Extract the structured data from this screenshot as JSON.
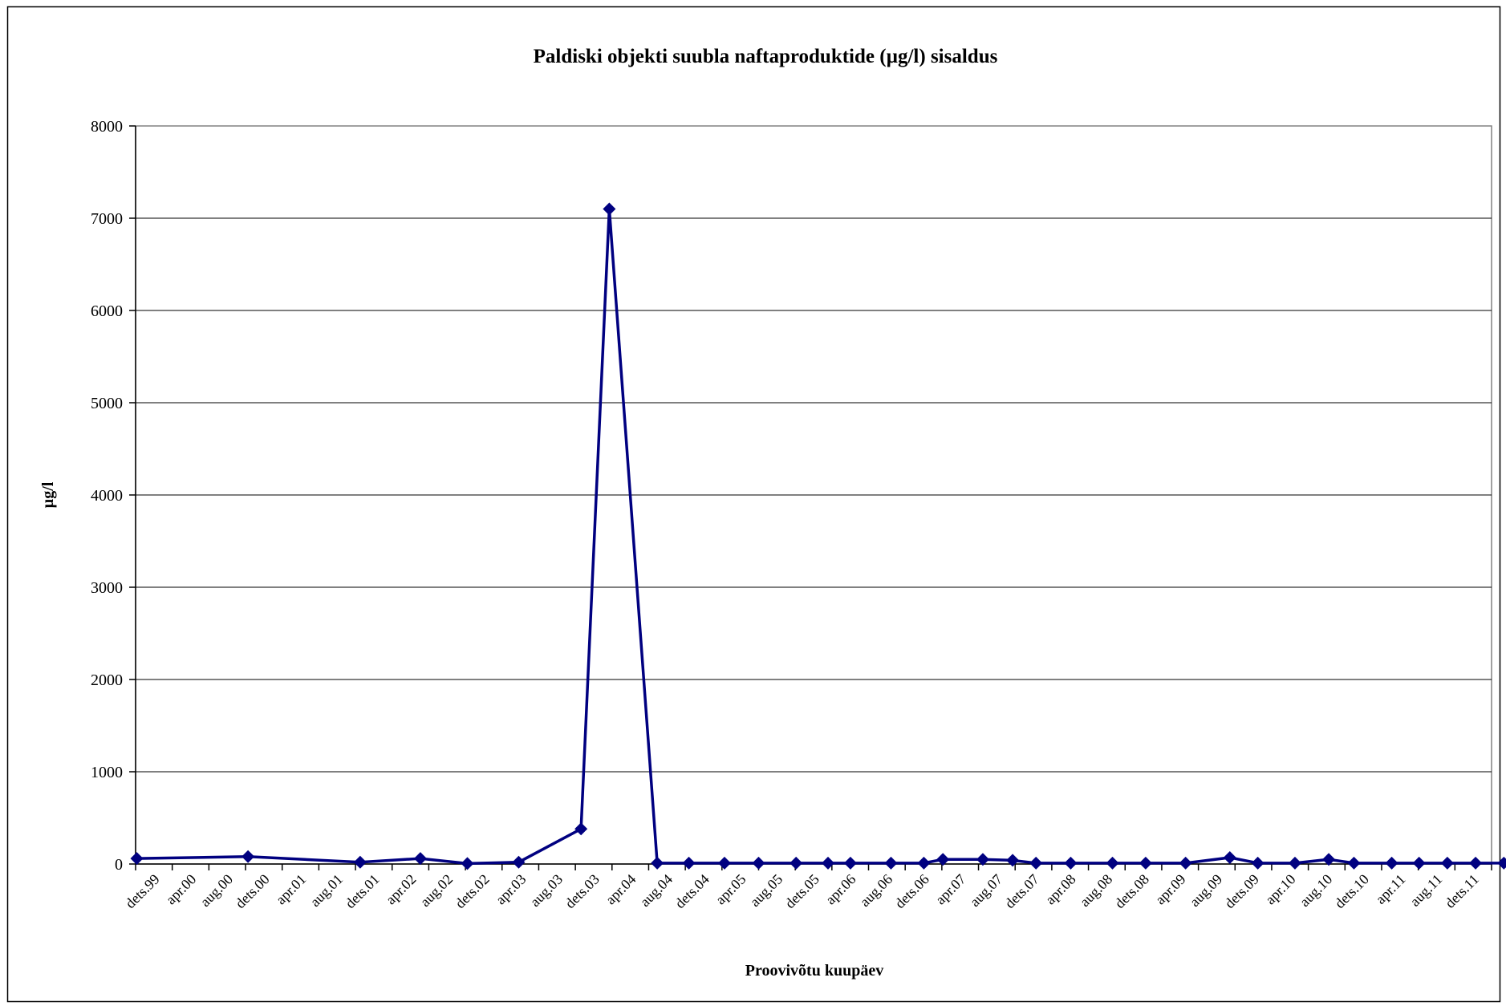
{
  "chart_data": {
    "type": "line",
    "title": "Paldiski objekti suubla naftaproduktide (µg/l) sisaldus",
    "xlabel": "Proovivõtu kuupäev",
    "ylabel": "µg/l",
    "ylim": [
      0,
      8000
    ],
    "yticks": [
      "0",
      "1000",
      "2000",
      "3000",
      "4000",
      "5000",
      "6000",
      "7000",
      "8000"
    ],
    "grid": "horizontal",
    "legend": "none",
    "x_range": [
      "1999-12",
      "2012-01"
    ],
    "categories": [
      "dets.99",
      "apr.00",
      "aug.00",
      "dets.00",
      "apr.01",
      "aug.01",
      "dets.01",
      "apr.02",
      "aug.02",
      "dets.02",
      "apr.03",
      "aug.03",
      "dets.03",
      "apr.04",
      "aug.04",
      "dets.04",
      "apr.05",
      "aug.05",
      "dets.05",
      "apr.06",
      "aug.06",
      "dets.06",
      "apr.07",
      "aug.07",
      "dets.07",
      "apr.08",
      "aug.08",
      "dets.08",
      "apr.09",
      "aug.09",
      "dets.09",
      "apr.10",
      "aug.10",
      "dets.10",
      "apr.11",
      "aug.11",
      "dets.11"
    ],
    "series": [
      {
        "color": "#000080",
        "marker": "diamond",
        "points": [
          {
            "x": "1999-12-05",
            "y": 60
          },
          {
            "x": "2000-12-01",
            "y": 80
          },
          {
            "x": "2001-12-01",
            "y": 20
          },
          {
            "x": "2002-06-15",
            "y": 60
          },
          {
            "x": "2002-11-15",
            "y": 5
          },
          {
            "x": "2003-05-01",
            "y": 20
          },
          {
            "x": "2003-11-20",
            "y": 380
          },
          {
            "x": "2004-02-20",
            "y": 7100
          },
          {
            "x": "2004-07-25",
            "y": 10
          },
          {
            "x": "2004-11-05",
            "y": 10
          },
          {
            "x": "2005-03-01",
            "y": 10
          },
          {
            "x": "2005-06-20",
            "y": 10
          },
          {
            "x": "2005-10-20",
            "y": 10
          },
          {
            "x": "2006-02-01",
            "y": 10
          },
          {
            "x": "2006-04-15",
            "y": 10
          },
          {
            "x": "2006-08-25",
            "y": 10
          },
          {
            "x": "2006-12-10",
            "y": 10
          },
          {
            "x": "2007-02-10",
            "y": 50
          },
          {
            "x": "2007-06-20",
            "y": 50
          },
          {
            "x": "2007-09-25",
            "y": 40
          },
          {
            "x": "2007-12-10",
            "y": 10
          },
          {
            "x": "2008-04-01",
            "y": 10
          },
          {
            "x": "2008-08-15",
            "y": 10
          },
          {
            "x": "2008-12-01",
            "y": 10
          },
          {
            "x": "2009-04-10",
            "y": 10
          },
          {
            "x": "2009-09-01",
            "y": 70
          },
          {
            "x": "2009-12-01",
            "y": 10
          },
          {
            "x": "2010-04-01",
            "y": 10
          },
          {
            "x": "2010-07-20",
            "y": 50
          },
          {
            "x": "2010-10-10",
            "y": 10
          },
          {
            "x": "2011-02-10",
            "y": 10
          },
          {
            "x": "2011-05-10",
            "y": 10
          },
          {
            "x": "2011-08-10",
            "y": 10
          },
          {
            "x": "2011-11-10",
            "y": 10
          },
          {
            "x": "2012-02-10",
            "y": 10
          },
          {
            "x": "2012-05-10",
            "y": 10
          },
          {
            "x": "2012-08-10",
            "y": 10
          }
        ]
      }
    ]
  }
}
